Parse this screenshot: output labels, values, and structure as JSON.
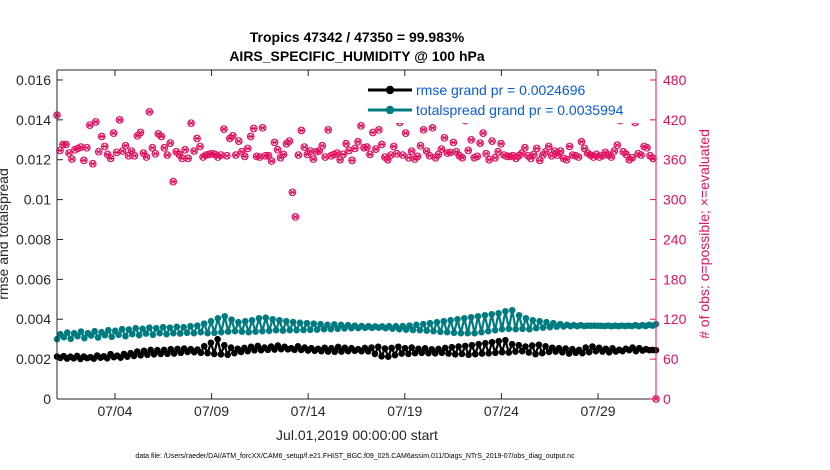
{
  "chart_data": {
    "type": "line",
    "title_line1": "Tropics 47342 / 47350 = 99.983%",
    "title_line2": "AIRS_SPECIFIC_HUMIDITY @ 100 hPa",
    "xlabel": "Jul.01,2019 00:00:00 start",
    "ylabel_left": "rmse and totalspread",
    "ylabel_right": "# of obs: o=possible; ×=evaluated",
    "footer": "data file: /Users/raeder/DAI/ATM_forcXX/CAM6_setup/f.e21.FHIST_BGC.f09_025.CAM6assim.011/Diags_NTrS_2019-07/obs_diag_output.nc",
    "x_range": [
      1.0,
      32.0
    ],
    "x_ticks": [
      4,
      9,
      14,
      19,
      24,
      29
    ],
    "x_tick_labels": [
      "07/04",
      "07/09",
      "07/14",
      "07/19",
      "07/24",
      "07/29"
    ],
    "ylim_left": [
      0,
      0.0165
    ],
    "y_ticks_left": [
      0,
      0.002,
      0.004,
      0.006,
      0.008,
      0.01,
      0.012,
      0.014,
      0.016
    ],
    "y_tick_labels_left": [
      "0",
      "0.002",
      "0.004",
      "0.006",
      "0.008",
      "0.01",
      "0.012",
      "0.014",
      "0.016"
    ],
    "ylim_right": [
      0,
      495
    ],
    "y_ticks_right": [
      0,
      60,
      120,
      180,
      240,
      300,
      360,
      420,
      480
    ],
    "y_tick_labels_right": [
      "0",
      "60",
      "120",
      "180",
      "240",
      "300",
      "360",
      "420",
      "480"
    ],
    "legend": [
      {
        "label": "rmse grand pr = 0.0024696",
        "color": "#000000"
      },
      {
        "label": "totalspread grand pr = 0.0035994",
        "color": "#007c80"
      }
    ],
    "colors": {
      "rmse": "#000000",
      "spread": "#007c80",
      "obs": "#e0115f",
      "legend_text": "#0a5bd8"
    },
    "series": [
      {
        "name": "rmse",
        "values": [
          0.00213,
          0.00206,
          0.00215,
          0.00203,
          0.00212,
          0.00204,
          0.00216,
          0.00201,
          0.00213,
          0.00205,
          0.0021,
          0.00202,
          0.00218,
          0.00207,
          0.00214,
          0.00204,
          0.00225,
          0.0021,
          0.00217,
          0.00207,
          0.00226,
          0.00212,
          0.0023,
          0.00216,
          0.00238,
          0.00219,
          0.00242,
          0.00222,
          0.00246,
          0.00224,
          0.00245,
          0.00226,
          0.00246,
          0.00227,
          0.0025,
          0.00228,
          0.00251,
          0.00232,
          0.00253,
          0.00236,
          0.0025,
          0.00235,
          0.00248,
          0.00232,
          0.00265,
          0.0023,
          0.00282,
          0.00226,
          0.003,
          0.00224,
          0.0027,
          0.00222,
          0.00258,
          0.0023,
          0.00252,
          0.00236,
          0.00256,
          0.0024,
          0.00262,
          0.00244,
          0.00266,
          0.00245,
          0.00258,
          0.00247,
          0.00263,
          0.00248,
          0.00268,
          0.0025,
          0.00262,
          0.00249,
          0.00255,
          0.00247,
          0.00264,
          0.00246,
          0.00258,
          0.00243,
          0.00255,
          0.00242,
          0.00252,
          0.0024,
          0.00257,
          0.00238,
          0.00255,
          0.00237,
          0.00261,
          0.00238,
          0.00257,
          0.0024,
          0.00255,
          0.00242,
          0.0025,
          0.0024,
          0.00256,
          0.00239,
          0.00258,
          0.00226,
          0.00262,
          0.00214,
          0.00253,
          0.00212,
          0.00256,
          0.0022,
          0.00262,
          0.00228,
          0.00255,
          0.00226,
          0.00258,
          0.0023,
          0.00252,
          0.00232,
          0.00254,
          0.0023,
          0.00249,
          0.00229,
          0.00251,
          0.00232,
          0.00256,
          0.00228,
          0.0026,
          0.00224,
          0.00263,
          0.00226,
          0.00266,
          0.00222,
          0.0027,
          0.00225,
          0.00275,
          0.00228,
          0.0028,
          0.00229,
          0.00285,
          0.00232,
          0.0029,
          0.00235,
          0.00295,
          0.00233,
          0.00275,
          0.00238,
          0.0027,
          0.0024,
          0.00263,
          0.00233,
          0.00268,
          0.00225,
          0.00272,
          0.0023,
          0.00264,
          0.00236,
          0.00257,
          0.00238,
          0.00255,
          0.00234,
          0.00253,
          0.00228,
          0.0025,
          0.00232,
          0.00246,
          0.0023,
          0.00258,
          0.00235,
          0.00263,
          0.0024,
          0.00257,
          0.00238,
          0.00252,
          0.00234,
          0.00254,
          0.00238,
          0.00247,
          0.0024,
          0.00252,
          0.00245,
          0.00258,
          0.0024,
          0.00255,
          0.00243,
          0.0025,
          0.00245,
          0.00246,
          0.00245
        ]
      },
      {
        "name": "totalspread",
        "values": [
          0.003,
          0.00325,
          0.0031,
          0.00333,
          0.00302,
          0.0033,
          0.00315,
          0.00338,
          0.00305,
          0.0033,
          0.00318,
          0.0034,
          0.00308,
          0.00335,
          0.0032,
          0.00345,
          0.00312,
          0.00342,
          0.00322,
          0.0035,
          0.00315,
          0.00348,
          0.00325,
          0.00355,
          0.0032,
          0.00352,
          0.00328,
          0.00358,
          0.00322,
          0.00355,
          0.0033,
          0.0036,
          0.00325,
          0.00358,
          0.0033,
          0.00362,
          0.00328,
          0.0036,
          0.00332,
          0.00365,
          0.0033,
          0.00368,
          0.00335,
          0.00378,
          0.0033,
          0.0039,
          0.00332,
          0.00405,
          0.00335,
          0.00415,
          0.00338,
          0.00398,
          0.0034,
          0.00385,
          0.00338,
          0.0039,
          0.00335,
          0.00395,
          0.00338,
          0.00405,
          0.0034,
          0.00408,
          0.00342,
          0.004,
          0.00345,
          0.00395,
          0.00343,
          0.0039,
          0.00345,
          0.00386,
          0.00345,
          0.00382,
          0.00346,
          0.0038,
          0.00347,
          0.00378,
          0.00348,
          0.00375,
          0.0035,
          0.00372,
          0.0035,
          0.00374,
          0.00352,
          0.00372,
          0.00354,
          0.0037,
          0.00355,
          0.00368,
          0.00356,
          0.00366,
          0.00357,
          0.00365,
          0.00357,
          0.00364,
          0.00358,
          0.00364,
          0.00355,
          0.00365,
          0.00353,
          0.00365,
          0.0035,
          0.00366,
          0.00348,
          0.00368,
          0.00346,
          0.00372,
          0.00345,
          0.00376,
          0.00343,
          0.0038,
          0.0034,
          0.00385,
          0.00337,
          0.0039,
          0.00335,
          0.00395,
          0.00332,
          0.004,
          0.0033,
          0.00405,
          0.0033,
          0.0041,
          0.0033,
          0.00415,
          0.00335,
          0.0042,
          0.0034,
          0.00425,
          0.00345,
          0.0043,
          0.0035,
          0.0044,
          0.00352,
          0.00445,
          0.0035,
          0.0042,
          0.00352,
          0.00405,
          0.0035,
          0.00395,
          0.00355,
          0.0039,
          0.00358,
          0.00385,
          0.0036,
          0.0038,
          0.00363,
          0.00376,
          0.00364,
          0.00372,
          0.00365,
          0.0037,
          0.00365,
          0.0037,
          0.00366,
          0.00368,
          0.00367,
          0.00368,
          0.00367,
          0.00367,
          0.00366,
          0.00368,
          0.00365,
          0.00368,
          0.00365,
          0.00368,
          0.00366,
          0.00368,
          0.00366,
          0.0037,
          0.00365,
          0.0037,
          0.00366,
          0.00372,
          0.00368,
          0.00375
        ]
      },
      {
        "name": "obs_possible",
        "values": [
          427,
          374,
          383,
          383,
          370,
          361,
          375,
          377,
          379,
          359,
          378,
          412,
          354,
          417,
          372,
          395,
          380,
          368,
          362,
          400,
          371,
          420,
          373,
          381,
          366,
          373,
          366,
          396,
          401,
          370,
          364,
          432,
          378,
          369,
          399,
          395,
          378,
          367,
          385,
          327,
          372,
          368,
          362,
          375,
          362,
          415,
          373,
          392,
          380,
          364,
          367,
          368,
          369,
          368,
          364,
          367,
          406,
          366,
          392,
          396,
          367,
          388,
          372,
          365,
          377,
          395,
          407,
          365,
          364,
          408,
          366,
          366,
          358,
          386,
          375,
          363,
          368,
          384,
          388,
          311,
          274,
          367,
          404,
          379,
          368,
          373,
          361,
          372,
          373,
          381,
          364,
          405,
          366,
          368,
          370,
          360,
          368,
          384,
          374,
          359,
          377,
          387,
          411,
          378,
          379,
          368,
          401,
          376,
          405,
          383,
          364,
          360,
          367,
          380,
          369,
          416,
          367,
          400,
          363,
          373,
          361,
          365,
          381,
          405,
          373,
          366,
          408,
          363,
          368,
          376,
          393,
          370,
          371,
          386,
          372,
          366,
          363,
          419,
          374,
          390,
          363,
          365,
          385,
          400,
          369,
          360,
          388,
          363,
          372,
          384,
          367,
          365,
          365,
          366,
          362,
          366,
          370,
          378,
          366,
          362,
          368,
          377,
          359,
          367,
          372,
          380,
          366,
          373,
          367,
          373,
          362,
          360,
          380,
          367,
          366,
          364,
          387,
          377,
          370,
          367,
          364,
          368,
          364,
          366,
          371,
          367,
          364,
          373,
          382,
          419,
          372,
          368,
          360,
          363,
          416,
          369,
          367,
          380,
          378,
          366,
          362,
          0
        ]
      }
    ]
  }
}
